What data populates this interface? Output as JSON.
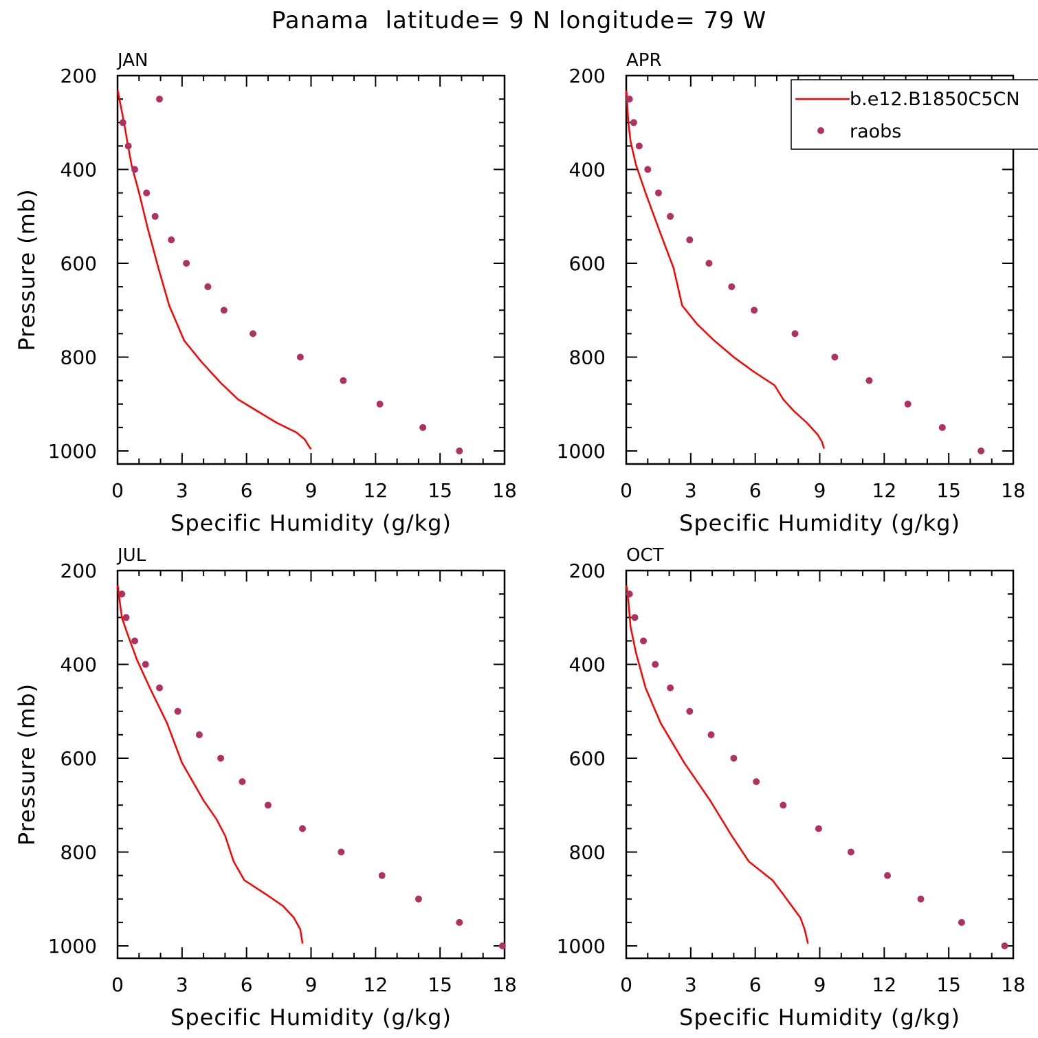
{
  "title": "Panama  latitude= 9 N longitude= 79 W",
  "colors": {
    "model": "#ff0000",
    "obs": "#b03060",
    "axis": "#000000"
  },
  "legend": {
    "model_label": "b.e12.B1850C5CN",
    "obs_label": "raobs",
    "placement": "top-right of APR panel"
  },
  "chart_data": [
    {
      "type": "line",
      "panel": "JAN",
      "xlabel": "Specific Humidity (g/kg)",
      "ylabel": "Pressure (mb)",
      "xlim": [
        0,
        18
      ],
      "ylim": [
        1025,
        200
      ],
      "xticks": [
        0,
        3,
        6,
        9,
        12,
        15,
        18
      ],
      "yticks": [
        200,
        400,
        600,
        800,
        1000
      ],
      "model": {
        "name": "b.e12.B1850C5CN",
        "q": [
          0.01,
          0.15,
          0.3,
          0.45,
          0.65,
          1.0,
          1.4,
          1.9,
          2.4,
          3.1,
          3.9,
          4.8,
          5.6,
          6.5,
          7.4,
          8.3,
          8.7,
          8.9,
          9.0
        ],
        "p": [
          232,
          265,
          300,
          340,
          390,
          450,
          525,
          610,
          690,
          765,
          810,
          855,
          890,
          915,
          940,
          960,
          975,
          990,
          996
        ]
      },
      "obs": {
        "name": "raobs",
        "q": [
          1.95,
          0.25,
          0.5,
          0.8,
          1.35,
          1.75,
          2.5,
          3.2,
          4.2,
          4.95,
          6.3,
          8.5,
          10.5,
          12.2,
          14.2,
          15.9
        ],
        "p": [
          250,
          300,
          350,
          400,
          450,
          500,
          550,
          600,
          650,
          700,
          750,
          800,
          850,
          900,
          950,
          1000
        ]
      }
    },
    {
      "type": "line",
      "panel": "APR",
      "xlabel": "Specific Humidity (g/kg)",
      "ylabel": "",
      "xlim": [
        0,
        18
      ],
      "ylim": [
        1025,
        200
      ],
      "xticks": [
        0,
        3,
        6,
        9,
        12,
        15,
        18
      ],
      "yticks": [
        200,
        400,
        600,
        800,
        1000
      ],
      "model": {
        "name": "b.e12.B1850C5CN",
        "q": [
          0.01,
          0.05,
          0.1,
          0.2,
          0.45,
          0.9,
          1.5,
          2.2,
          2.6,
          3.3,
          4.1,
          5.0,
          5.9,
          6.9,
          7.3,
          7.8,
          8.4,
          8.9,
          9.1,
          9.2
        ],
        "p": [
          232,
          265,
          300,
          340,
          390,
          450,
          525,
          610,
          690,
          730,
          765,
          800,
          830,
          860,
          890,
          915,
          940,
          965,
          980,
          995
        ]
      },
      "obs": {
        "name": "raobs",
        "q": [
          0.15,
          0.35,
          0.6,
          1.0,
          1.5,
          2.05,
          2.95,
          3.85,
          4.9,
          5.95,
          7.85,
          9.7,
          11.3,
          13.1,
          14.7,
          16.5
        ],
        "p": [
          250,
          300,
          350,
          400,
          450,
          500,
          550,
          600,
          650,
          700,
          750,
          800,
          850,
          900,
          950,
          1000
        ]
      }
    },
    {
      "type": "line",
      "panel": "JUL",
      "xlabel": "Specific Humidity (g/kg)",
      "ylabel": "Pressure (mb)",
      "xlim": [
        0,
        18
      ],
      "ylim": [
        1025,
        200
      ],
      "xticks": [
        0,
        3,
        6,
        9,
        12,
        15,
        18
      ],
      "yticks": [
        200,
        400,
        600,
        800,
        1000
      ],
      "model": {
        "name": "b.e12.B1850C5CN",
        "q": [
          0.01,
          0.1,
          0.2,
          0.5,
          0.9,
          1.5,
          2.3,
          3.0,
          4.0,
          4.6,
          5.0,
          5.4,
          5.9,
          6.9,
          7.7,
          8.2,
          8.5,
          8.6
        ],
        "p": [
          232,
          265,
          300,
          340,
          390,
          450,
          525,
          610,
          690,
          730,
          765,
          820,
          860,
          890,
          915,
          940,
          965,
          995
        ]
      },
      "obs": {
        "name": "raobs",
        "q": [
          0.2,
          0.4,
          0.8,
          1.3,
          1.95,
          2.8,
          3.8,
          4.8,
          5.8,
          7.0,
          8.6,
          10.4,
          12.3,
          14.0,
          15.9,
          17.9
        ],
        "p": [
          250,
          300,
          350,
          400,
          450,
          500,
          550,
          600,
          650,
          700,
          750,
          800,
          850,
          900,
          950,
          1000
        ]
      }
    },
    {
      "type": "line",
      "panel": "OCT",
      "xlabel": "Specific Humidity (g/kg)",
      "ylabel": "",
      "xlim": [
        0,
        18
      ],
      "ylim": [
        1025,
        200
      ],
      "xticks": [
        0,
        3,
        6,
        9,
        12,
        15,
        18
      ],
      "yticks": [
        200,
        400,
        600,
        800,
        1000
      ],
      "model": {
        "name": "b.e12.B1850C5CN",
        "q": [
          0.01,
          0.1,
          0.2,
          0.45,
          0.9,
          1.6,
          2.7,
          3.9,
          4.9,
          5.7,
          6.8,
          7.3,
          7.7,
          8.1,
          8.3,
          8.45
        ],
        "p": [
          232,
          265,
          320,
          375,
          450,
          525,
          610,
          690,
          765,
          820,
          860,
          890,
          915,
          940,
          965,
          995
        ]
      },
      "obs": {
        "name": "raobs",
        "q": [
          0.15,
          0.4,
          0.8,
          1.35,
          2.05,
          2.95,
          3.95,
          5.0,
          6.05,
          7.3,
          8.95,
          10.45,
          12.15,
          13.7,
          15.6,
          17.6
        ],
        "p": [
          250,
          300,
          350,
          400,
          450,
          500,
          550,
          600,
          650,
          700,
          750,
          800,
          850,
          900,
          950,
          1000
        ]
      }
    }
  ]
}
